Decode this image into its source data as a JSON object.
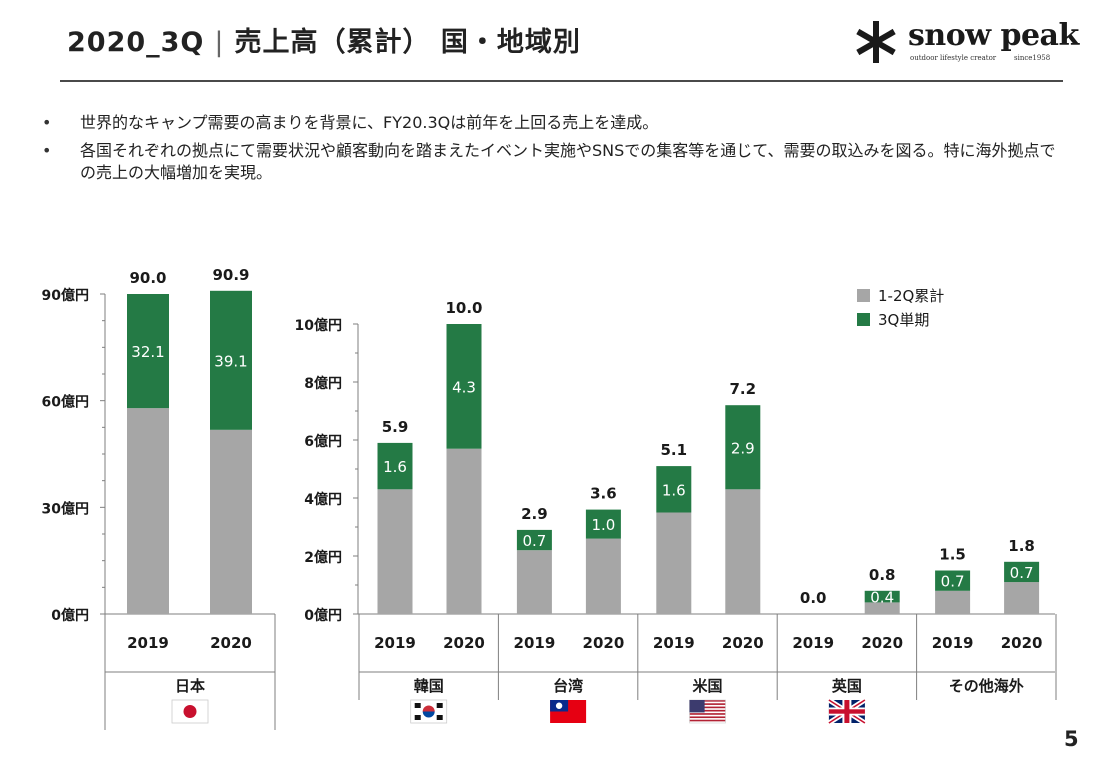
{
  "header": {
    "title_period": "2020_3Q",
    "title_main": "売上高（累計） 国・地域別",
    "logo_brand": "snow peak",
    "logo_tagline": "outdoor lifestyle creator",
    "logo_since": "since1958"
  },
  "bullets": [
    "世界的なキャンプ需要の高まりを背景に、FY20.3Qは前年を上回る売上を達成。",
    "各国それぞれの拠点にて需要状況や顧客動向を踏まえたイベント実施やSNSでの集客等を通じて、需要の取込みを図る。特に海外拠点での売上の大幅増加を実現。"
  ],
  "page_number": "5",
  "colors": {
    "base": "#a6a6a6",
    "q3": "#247a45",
    "axis": "#7f7f7f"
  },
  "chart_data": [
    {
      "type": "bar",
      "stacked": true,
      "region": "日本",
      "flag": "japan-flag",
      "categories": [
        "2019",
        "2020"
      ],
      "yticks": [
        "0億円",
        "30億円",
        "60億円",
        "90億円"
      ],
      "ylim": [
        0,
        90
      ],
      "totals": [
        90.0,
        90.9
      ],
      "total_labels": [
        "90.0",
        "90.9"
      ],
      "series": [
        {
          "name": "1-2Q累計",
          "values": [
            57.9,
            51.8
          ],
          "labels": [
            "",
            ""
          ]
        },
        {
          "name": "3Q単期",
          "values": [
            32.1,
            39.1
          ],
          "labels": [
            "32.1",
            "39.1"
          ]
        }
      ]
    },
    {
      "type": "bar",
      "stacked": true,
      "yticks": [
        "0億円",
        "2億円",
        "4億円",
        "6億円",
        "8億円",
        "10億円"
      ],
      "ylim": [
        0,
        10
      ],
      "legend": [
        "1-2Q累計",
        "3Q単期"
      ],
      "legend_position": "top-right",
      "groups": [
        {
          "region": "韓国",
          "flag": "korea-flag",
          "categories": [
            "2019",
            "2020"
          ],
          "totals": [
            5.9,
            10.0
          ],
          "total_labels": [
            "5.9",
            "10.0"
          ],
          "series": [
            {
              "name": "1-2Q累計",
              "values": [
                4.3,
                5.7
              ]
            },
            {
              "name": "3Q単期",
              "values": [
                1.6,
                4.3
              ],
              "labels": [
                "1.6",
                "4.3"
              ]
            }
          ]
        },
        {
          "region": "台湾",
          "flag": "taiwan-flag",
          "categories": [
            "2019",
            "2020"
          ],
          "totals": [
            2.9,
            3.6
          ],
          "total_labels": [
            "2.9",
            "3.6"
          ],
          "series": [
            {
              "name": "1-2Q累計",
              "values": [
                2.2,
                2.6
              ]
            },
            {
              "name": "3Q単期",
              "values": [
                0.7,
                1.0
              ],
              "labels": [
                "0.7",
                "1.0"
              ]
            }
          ]
        },
        {
          "region": "米国",
          "flag": "usa-flag",
          "categories": [
            "2019",
            "2020"
          ],
          "totals": [
            5.1,
            7.2
          ],
          "total_labels": [
            "5.1",
            "7.2"
          ],
          "series": [
            {
              "name": "1-2Q累計",
              "values": [
                3.5,
                4.3
              ]
            },
            {
              "name": "3Q単期",
              "values": [
                1.6,
                2.9
              ],
              "labels": [
                "1.6",
                "2.9"
              ]
            }
          ]
        },
        {
          "region": "英国",
          "flag": "uk-flag",
          "categories": [
            "2019",
            "2020"
          ],
          "totals": [
            0.0,
            0.8
          ],
          "total_labels": [
            "0.0",
            "0.8"
          ],
          "series": [
            {
              "name": "1-2Q累計",
              "values": [
                0.0,
                0.4
              ]
            },
            {
              "name": "3Q単期",
              "values": [
                0.0,
                0.4
              ],
              "labels": [
                "",
                "0.4"
              ]
            }
          ]
        },
        {
          "region": "その他海外",
          "flag": "",
          "categories": [
            "2019",
            "2020"
          ],
          "totals": [
            1.5,
            1.8
          ],
          "total_labels": [
            "1.5",
            "1.8"
          ],
          "series": [
            {
              "name": "1-2Q累計",
              "values": [
                0.8,
                1.1
              ]
            },
            {
              "name": "3Q単期",
              "values": [
                0.7,
                0.7
              ],
              "labels": [
                "0.7",
                "0.7"
              ]
            }
          ]
        }
      ]
    }
  ]
}
